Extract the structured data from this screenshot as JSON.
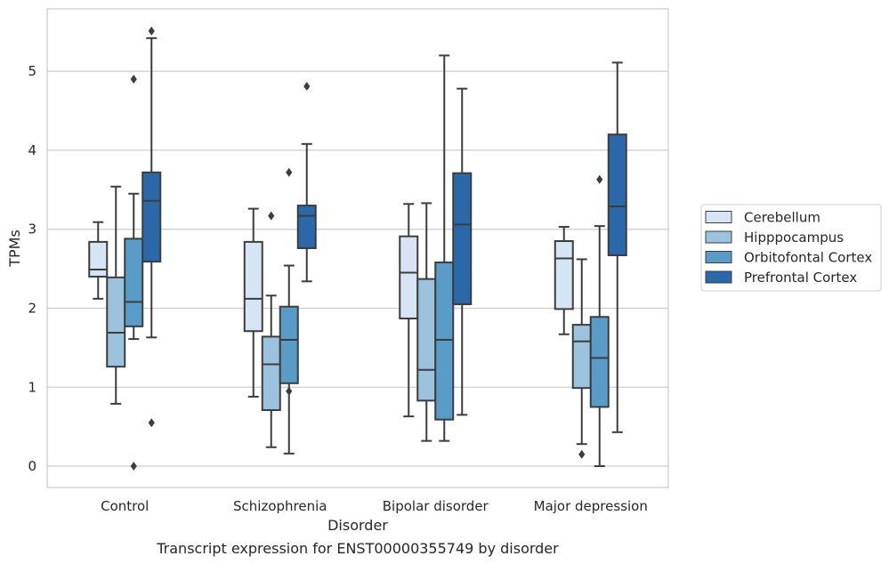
{
  "caption": "Transcript expression for ENST00000355749 by disorder",
  "chart_data": {
    "type": "box",
    "title": "",
    "xlabel": "Disorder",
    "ylabel": "TPMs",
    "ylim": [
      -0.27,
      5.79
    ],
    "yticks": [
      0,
      1,
      2,
      3,
      4,
      5
    ],
    "grid": "horizontal",
    "legend_position": "right",
    "categories": [
      "Control",
      "Schizophrenia",
      "Bipolar disorder",
      "Major depression"
    ],
    "series": [
      {
        "name": "Cerebellum",
        "color": "#d6e5f3",
        "boxes": [
          {
            "whisker_low": 2.12,
            "q1": 2.4,
            "median": 2.49,
            "q3": 2.84,
            "whisker_high": 3.09,
            "outliers": []
          },
          {
            "whisker_low": 0.88,
            "q1": 1.71,
            "median": 2.12,
            "q3": 2.84,
            "whisker_high": 3.26,
            "outliers": []
          },
          {
            "whisker_low": 0.63,
            "q1": 1.87,
            "median": 2.45,
            "q3": 2.91,
            "whisker_high": 3.32,
            "outliers": []
          },
          {
            "whisker_low": 1.67,
            "q1": 1.99,
            "median": 2.63,
            "q3": 2.85,
            "whisker_high": 3.03,
            "outliers": []
          }
        ]
      },
      {
        "name": "Hipppocampus",
        "color": "#9cc3de",
        "boxes": [
          {
            "whisker_low": 0.79,
            "q1": 1.26,
            "median": 1.69,
            "q3": 2.39,
            "whisker_high": 3.54,
            "outliers": []
          },
          {
            "whisker_low": 0.24,
            "q1": 0.71,
            "median": 1.29,
            "q3": 1.64,
            "whisker_high": 2.16,
            "outliers": [
              3.17
            ]
          },
          {
            "whisker_low": 0.32,
            "q1": 0.83,
            "median": 1.22,
            "q3": 2.37,
            "whisker_high": 3.33,
            "outliers": []
          },
          {
            "whisker_low": 0.28,
            "q1": 0.99,
            "median": 1.58,
            "q3": 1.79,
            "whisker_high": 2.62,
            "outliers": [
              0.15
            ]
          }
        ]
      },
      {
        "name": "Orbitofontal Cortex",
        "color": "#5a9cc8",
        "boxes": [
          {
            "whisker_low": 1.61,
            "q1": 1.77,
            "median": 2.08,
            "q3": 2.88,
            "whisker_high": 3.45,
            "outliers": [
              4.9,
              0.0
            ]
          },
          {
            "whisker_low": 0.16,
            "q1": 1.05,
            "median": 1.6,
            "q3": 2.02,
            "whisker_high": 2.54,
            "outliers": [
              3.72,
              0.95
            ]
          },
          {
            "whisker_low": 0.32,
            "q1": 0.59,
            "median": 1.6,
            "q3": 2.58,
            "whisker_high": 5.2,
            "outliers": []
          },
          {
            "whisker_low": 0.0,
            "q1": 0.75,
            "median": 1.37,
            "q3": 1.89,
            "whisker_high": 3.04,
            "outliers": [
              3.63
            ]
          }
        ]
      },
      {
        "name": "Prefrontal Cortex",
        "color": "#2a68aa",
        "boxes": [
          {
            "whisker_low": 1.63,
            "q1": 2.59,
            "median": 3.36,
            "q3": 3.72,
            "whisker_high": 5.42,
            "outliers": [
              5.51,
              0.55
            ]
          },
          {
            "whisker_low": 2.34,
            "q1": 2.76,
            "median": 3.17,
            "q3": 3.3,
            "whisker_high": 4.08,
            "outliers": [
              4.81
            ]
          },
          {
            "whisker_low": 0.65,
            "q1": 2.05,
            "median": 3.06,
            "q3": 3.71,
            "whisker_high": 4.78,
            "outliers": []
          },
          {
            "whisker_low": 0.43,
            "q1": 2.67,
            "median": 3.29,
            "q3": 4.2,
            "whisker_high": 5.11,
            "outliers": []
          }
        ]
      }
    ]
  }
}
